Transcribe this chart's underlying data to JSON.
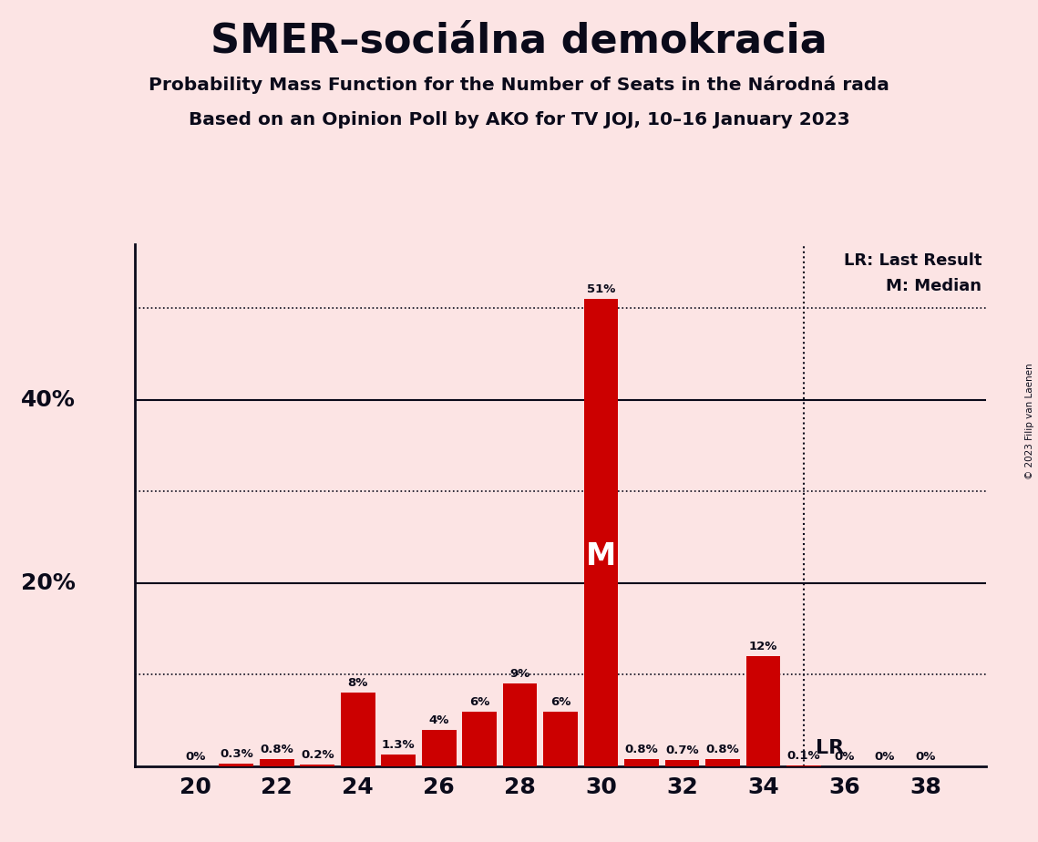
{
  "title": "SMER–sociálna demokracia",
  "subtitle1": "Probability Mass Function for the Number of Seats in the Národná rada",
  "subtitle2": "Based on an Opinion Poll by AKO for TV JOJ, 10–16 January 2023",
  "copyright": "© 2023 Filip van Laenen",
  "background_color": "#fce4e4",
  "bar_color": "#cc0000",
  "seats": [
    20,
    21,
    22,
    23,
    24,
    25,
    26,
    27,
    28,
    29,
    30,
    31,
    32,
    33,
    34,
    35,
    36,
    37,
    38
  ],
  "values": [
    0.0,
    0.3,
    0.8,
    0.2,
    8.0,
    1.3,
    4.0,
    6.0,
    9.0,
    6.0,
    51.0,
    0.8,
    0.7,
    0.8,
    12.0,
    0.1,
    0.0,
    0.0,
    0.0
  ],
  "labels": [
    "0%",
    "0.3%",
    "0.8%",
    "0.2%",
    "8%",
    "1.3%",
    "4%",
    "6%",
    "9%",
    "6%",
    "51%",
    "0.8%",
    "0.7%",
    "0.8%",
    "12%",
    "0.1%",
    "0%",
    "0%",
    "0%"
  ],
  "median_seat": 30,
  "lr_seat": 35,
  "lr_label": "LR",
  "lr_legend": "LR: Last Result",
  "m_legend": "M: Median",
  "ylim": [
    0,
    57
  ],
  "solid_lines": [
    20,
    40
  ],
  "dotted_lines": [
    10,
    30,
    50
  ],
  "xlabel_seats": [
    20,
    22,
    24,
    26,
    28,
    30,
    32,
    34,
    36,
    38
  ],
  "ytick_positions": [
    20,
    40
  ],
  "ytick_labels": [
    "20%",
    "40%"
  ],
  "axis_color": "#0a0a1a",
  "text_color": "#0a0a1a"
}
